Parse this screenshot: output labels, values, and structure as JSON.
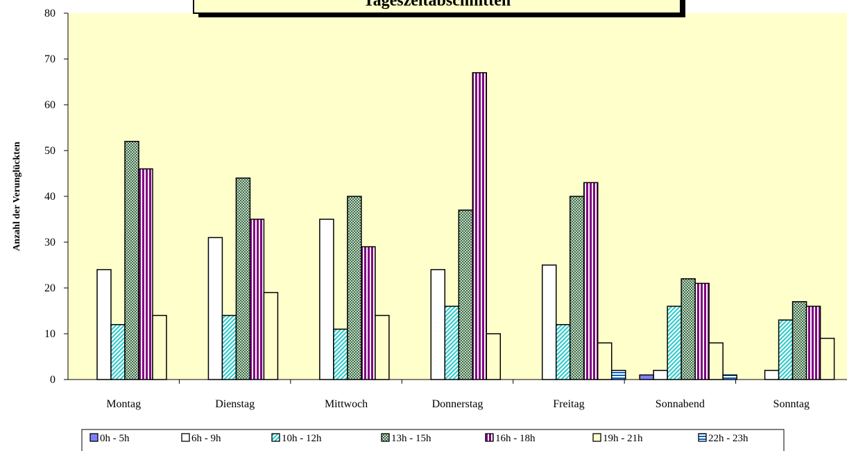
{
  "chart_data": {
    "type": "bar",
    "title": "Tageszeitabschnitten",
    "ylabel": "Anzahl der Verunglückten",
    "xlabel": "",
    "ylim": [
      0,
      80
    ],
    "yticks": [
      0,
      10,
      20,
      30,
      40,
      50,
      60,
      70,
      80
    ],
    "grid": false,
    "legend_position": "bottom",
    "categories": [
      "Montag",
      "Dienstag",
      "Mittwoch",
      "Donnerstag",
      "Freitag",
      "Sonnabend",
      "Sonntag"
    ],
    "series": [
      {
        "name": "0h - 5h",
        "values": [
          0,
          0,
          0,
          0,
          0,
          1,
          0
        ],
        "color": "#8080ff",
        "pattern": "solid"
      },
      {
        "name": "6h - 9h",
        "values": [
          24,
          31,
          35,
          24,
          25,
          2,
          2
        ],
        "color": "#ffffff",
        "pattern": "solid"
      },
      {
        "name": "10h - 12h",
        "values": [
          12,
          14,
          11,
          16,
          12,
          16,
          13
        ],
        "color": "#33cccc",
        "pattern": "diagonal"
      },
      {
        "name": "13h - 15h",
        "values": [
          52,
          44,
          40,
          37,
          40,
          22,
          17
        ],
        "color": "#5f8a6a",
        "pattern": "dots"
      },
      {
        "name": "16h - 18h",
        "values": [
          46,
          35,
          29,
          67,
          43,
          21,
          16
        ],
        "color": "#800080",
        "pattern": "vertical"
      },
      {
        "name": "19h - 21h",
        "values": [
          14,
          19,
          14,
          10,
          8,
          8,
          9
        ],
        "color": "#ffffcc",
        "pattern": "solid"
      },
      {
        "name": "22h - 23h",
        "values": [
          0,
          0,
          0,
          0,
          2,
          1,
          0
        ],
        "color": "#0066cc",
        "pattern": "horizontal"
      }
    ]
  }
}
